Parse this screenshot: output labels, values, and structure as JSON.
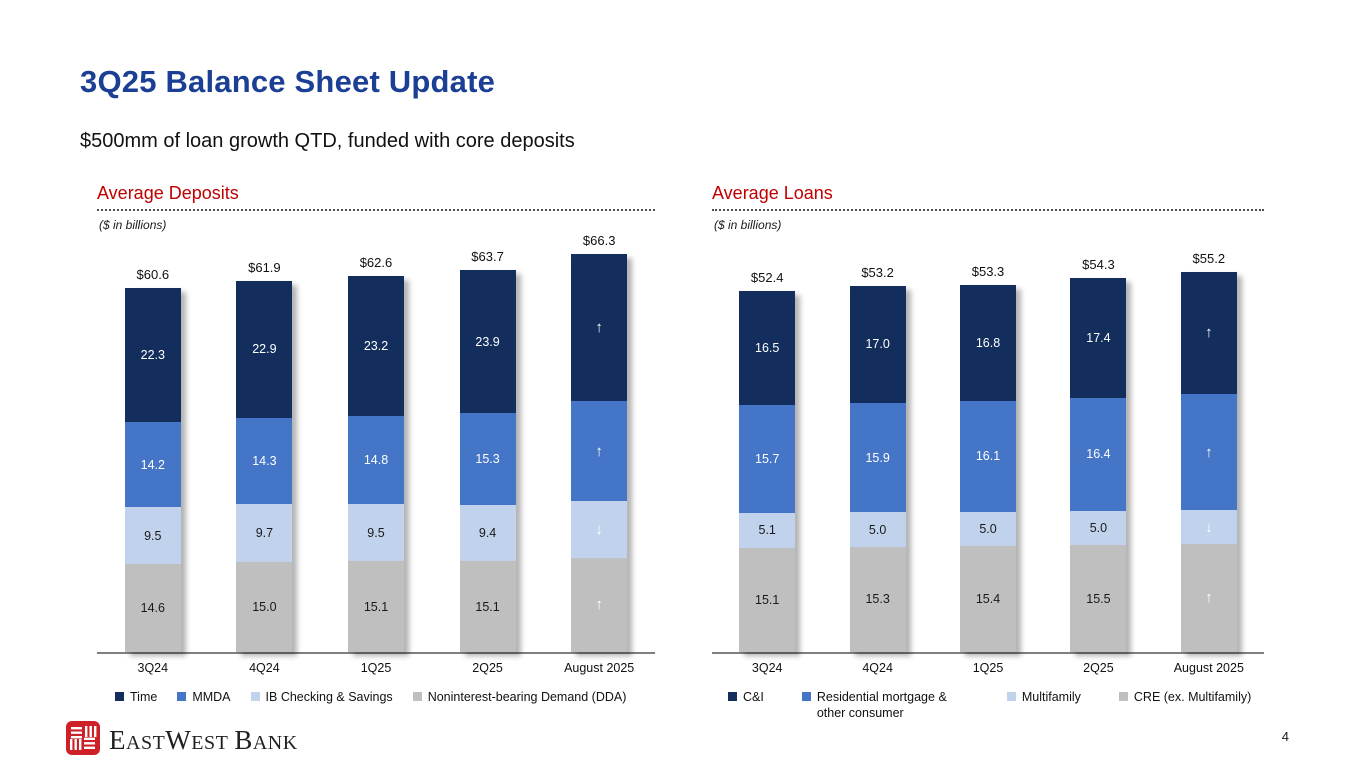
{
  "header": {
    "title": "3Q25 Balance Sheet Update",
    "subtitle": "$500mm of loan growth QTD, funded with core deposits"
  },
  "footer": {
    "page_number": "4",
    "logo": {
      "name": "East West Bank",
      "icon": "eastwest-bank-lattice-icon",
      "e_cap": "E",
      "e_rest": "AST",
      "w_cap": "W",
      "w_rest": "EST",
      "b_cap": "B",
      "b_rest": "ANK"
    }
  },
  "colors": {
    "title_blue": "#1b3f94",
    "section_red": "#c00000",
    "navy": "#132e5c",
    "medium_blue": "#4475c6",
    "light_blue": "#c1d2ec",
    "gray": "#bfbfbf",
    "axis_gray": "#7f7f7f",
    "logo_red": "#cd2027"
  },
  "chart_data": [
    {
      "type": "bar",
      "stacked": true,
      "title": "Average Deposits",
      "units_note": "($ in billions)",
      "categories": [
        "3Q24",
        "4Q24",
        "1Q25",
        "2Q25",
        "August 2025"
      ],
      "totals": [
        "$60.6",
        "$61.9",
        "$62.6",
        "$63.7",
        "$66.3"
      ],
      "total_values": [
        60.6,
        61.9,
        62.6,
        63.7,
        66.3
      ],
      "ylim": [
        0,
        70
      ],
      "grid": false,
      "legend_position": "bottom",
      "series": [
        {
          "name": "Time",
          "color": "#132e5c",
          "label_color": "#ffffff",
          "values": [
            22.3,
            22.9,
            23.2,
            23.9,
            24.4
          ],
          "labels": [
            "22.3",
            "22.9",
            "23.2",
            "23.9",
            "arrow-up"
          ]
        },
        {
          "name": "MMDA",
          "color": "#4475c6",
          "label_color": "#ffffff",
          "values": [
            14.2,
            14.3,
            14.8,
            15.3,
            16.8
          ],
          "labels": [
            "14.2",
            "14.3",
            "14.8",
            "15.3",
            "arrow-up"
          ]
        },
        {
          "name": "IB Checking & Savings",
          "color": "#c1d2ec",
          "label_color": "#1a1a1a",
          "values": [
            9.5,
            9.7,
            9.5,
            9.4,
            9.4
          ],
          "labels": [
            "9.5",
            "9.7",
            "9.5",
            "9.4",
            "arrow-down"
          ]
        },
        {
          "name": "Noninterest-bearing Demand (DDA)",
          "color": "#bfbfbf",
          "label_color": "#1a1a1a",
          "values": [
            14.6,
            15.0,
            15.1,
            15.1,
            15.7
          ],
          "labels": [
            "14.6",
            "15.0",
            "15.1",
            "15.1",
            "arrow-up"
          ]
        }
      ]
    },
    {
      "type": "bar",
      "stacked": true,
      "title": "Average Loans",
      "units_note": "($ in billions)",
      "categories": [
        "3Q24",
        "4Q24",
        "1Q25",
        "2Q25",
        "August 2025"
      ],
      "totals": [
        "$52.4",
        "$53.2",
        "$53.3",
        "$54.3",
        "$55.2"
      ],
      "total_values": [
        52.4,
        53.2,
        53.3,
        54.3,
        55.2
      ],
      "ylim": [
        0,
        61
      ],
      "grid": false,
      "legend_position": "bottom",
      "series": [
        {
          "name": "C&I",
          "color": "#132e5c",
          "label_color": "#ffffff",
          "values": [
            16.5,
            17.0,
            16.8,
            17.4,
            17.7
          ],
          "labels": [
            "16.5",
            "17.0",
            "16.8",
            "17.4",
            "arrow-up"
          ]
        },
        {
          "name": "Residential mortgage & other consumer",
          "color": "#4475c6",
          "label_color": "#ffffff",
          "values": [
            15.7,
            15.9,
            16.1,
            16.4,
            16.9
          ],
          "labels": [
            "15.7",
            "15.9",
            "16.1",
            "16.4",
            "arrow-up"
          ]
        },
        {
          "name": "Multifamily",
          "color": "#c1d2ec",
          "label_color": "#1a1a1a",
          "values": [
            5.1,
            5.0,
            5.0,
            5.0,
            4.9
          ],
          "labels": [
            "5.1",
            "5.0",
            "5.0",
            "5.0",
            "arrow-down"
          ]
        },
        {
          "name": "CRE (ex. Multifamily)",
          "color": "#bfbfbf",
          "label_color": "#1a1a1a",
          "values": [
            15.1,
            15.3,
            15.4,
            15.5,
            15.7
          ],
          "labels": [
            "15.1",
            "15.3",
            "15.4",
            "15.5",
            "arrow-up"
          ]
        }
      ]
    }
  ]
}
